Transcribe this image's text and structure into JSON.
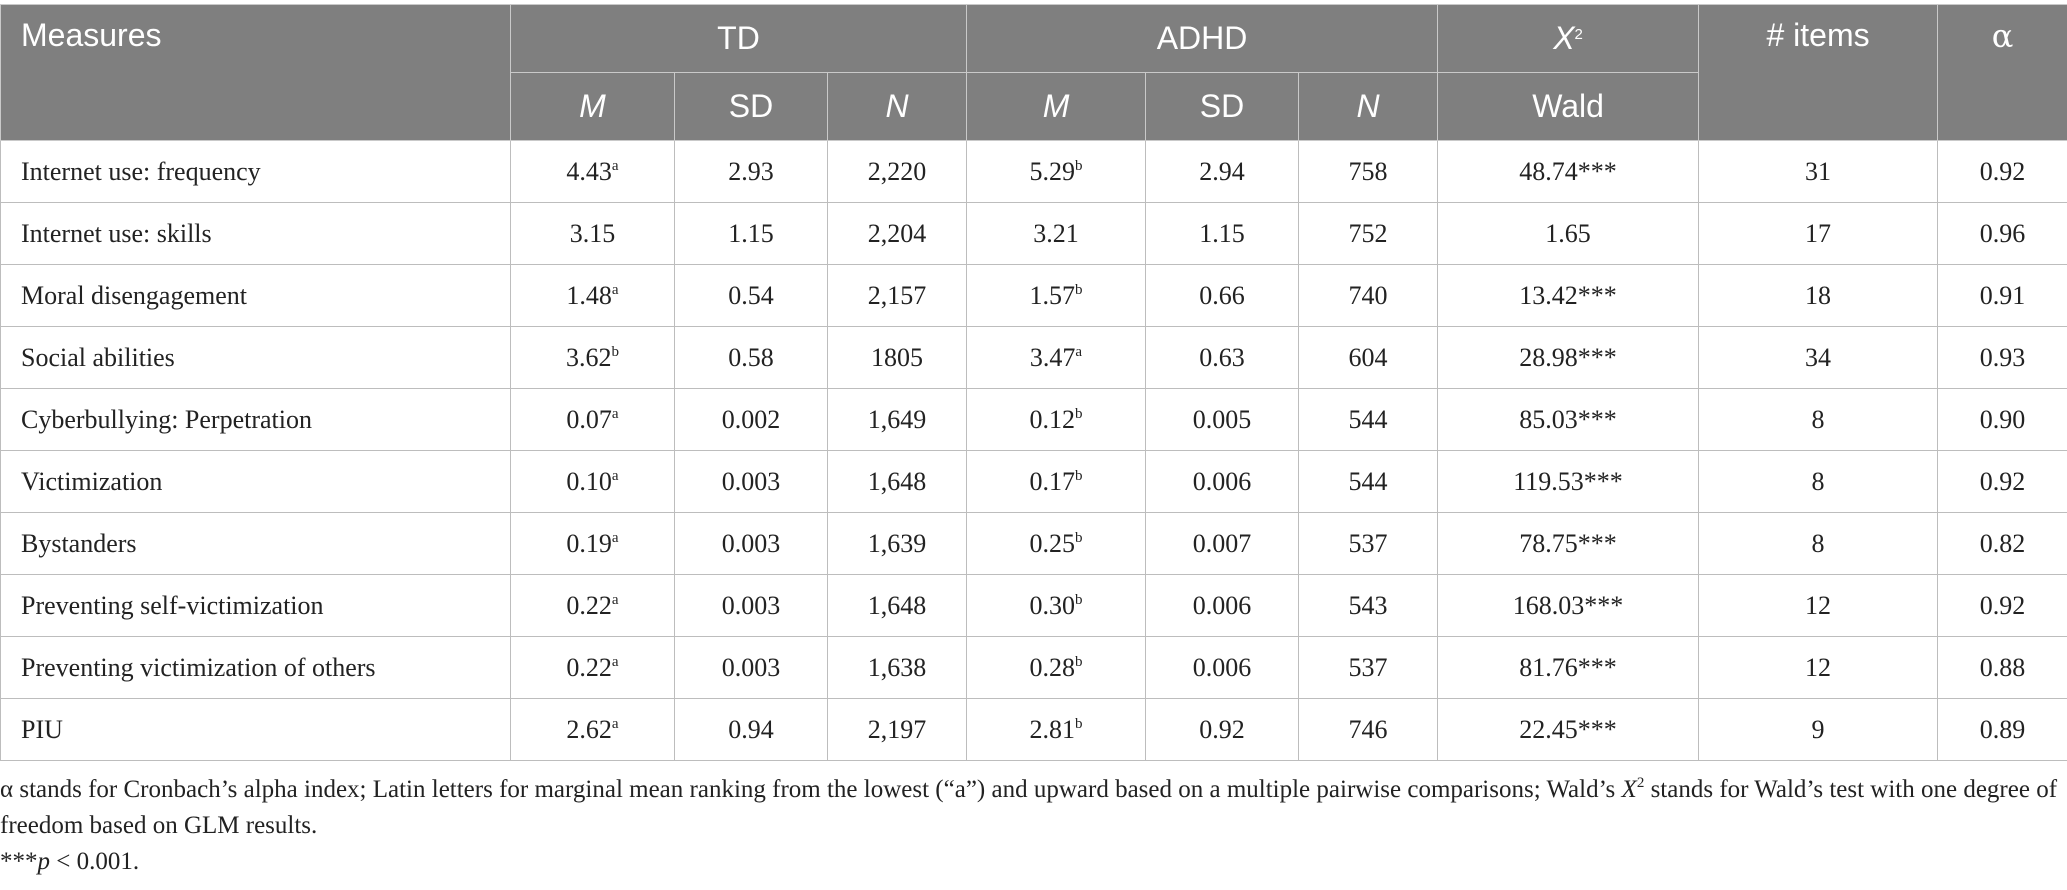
{
  "table": {
    "header": {
      "measures": "Measures",
      "td": "TD",
      "adhd": "ADHD",
      "chi_base": "X",
      "chi_exp": "2",
      "wald": "Wald",
      "items": "# items",
      "alpha": "α",
      "m": "M",
      "sd": "SD",
      "n": "N"
    },
    "rows": [
      {
        "measure": "Internet use: frequency",
        "td_m": "4.43",
        "td_m_sup": "a",
        "td_sd": "2.93",
        "td_n": "2,220",
        "adhd_m": "5.29",
        "adhd_m_sup": "b",
        "adhd_sd": "2.94",
        "adhd_n": "758",
        "wald": "48.74***",
        "items": "31",
        "alpha": "0.92"
      },
      {
        "measure": "Internet use: skills",
        "td_m": "3.15",
        "td_m_sup": "",
        "td_sd": "1.15",
        "td_n": "2,204",
        "adhd_m": "3.21",
        "adhd_m_sup": "",
        "adhd_sd": "1.15",
        "adhd_n": "752",
        "wald": "1.65",
        "items": "17",
        "alpha": "0.96"
      },
      {
        "measure": "Moral disengagement",
        "td_m": "1.48",
        "td_m_sup": "a",
        "td_sd": "0.54",
        "td_n": "2,157",
        "adhd_m": "1.57",
        "adhd_m_sup": "b",
        "adhd_sd": "0.66",
        "adhd_n": "740",
        "wald": "13.42***",
        "items": "18",
        "alpha": "0.91"
      },
      {
        "measure": "Social abilities",
        "td_m": "3.62",
        "td_m_sup": "b",
        "td_sd": "0.58",
        "td_n": "1805",
        "adhd_m": "3.47",
        "adhd_m_sup": "a",
        "adhd_sd": "0.63",
        "adhd_n": "604",
        "wald": "28.98***",
        "items": "34",
        "alpha": "0.93"
      },
      {
        "measure": "Cyberbullying: Perpetration",
        "td_m": "0.07",
        "td_m_sup": "a",
        "td_sd": "0.002",
        "td_n": "1,649",
        "adhd_m": "0.12",
        "adhd_m_sup": "b",
        "adhd_sd": "0.005",
        "adhd_n": "544",
        "wald": "85.03***",
        "items": "8",
        "alpha": "0.90"
      },
      {
        "measure": "Victimization",
        "td_m": "0.10",
        "td_m_sup": "a",
        "td_sd": "0.003",
        "td_n": "1,648",
        "adhd_m": "0.17",
        "adhd_m_sup": "b",
        "adhd_sd": "0.006",
        "adhd_n": "544",
        "wald": "119.53***",
        "items": "8",
        "alpha": "0.92"
      },
      {
        "measure": "Bystanders",
        "td_m": "0.19",
        "td_m_sup": "a",
        "td_sd": "0.003",
        "td_n": "1,639",
        "adhd_m": "0.25",
        "adhd_m_sup": "b",
        "adhd_sd": "0.007",
        "adhd_n": "537",
        "wald": "78.75***",
        "items": "8",
        "alpha": "0.82"
      },
      {
        "measure": "Preventing self-victimization",
        "td_m": "0.22",
        "td_m_sup": "a",
        "td_sd": "0.003",
        "td_n": "1,648",
        "adhd_m": "0.30",
        "adhd_m_sup": "b",
        "adhd_sd": "0.006",
        "adhd_n": "543",
        "wald": "168.03***",
        "items": "12",
        "alpha": "0.92"
      },
      {
        "measure": "Preventing victimization of others",
        "td_m": "0.22",
        "td_m_sup": "a",
        "td_sd": "0.003",
        "td_n": "1,638",
        "adhd_m": "0.28",
        "adhd_m_sup": "b",
        "adhd_sd": "0.006",
        "adhd_n": "537",
        "wald": "81.76***",
        "items": "12",
        "alpha": "0.88"
      },
      {
        "measure": "PIU",
        "td_m": "2.62",
        "td_m_sup": "a",
        "td_sd": "0.94",
        "td_n": "2,197",
        "adhd_m": "2.81",
        "adhd_m_sup": "b",
        "adhd_sd": "0.92",
        "adhd_n": "746",
        "wald": "22.45***",
        "items": "9",
        "alpha": "0.89"
      }
    ]
  },
  "notes": {
    "line1_pre": "α stands for Cronbach’s alpha index; Latin letters for marginal mean ranking from the lowest (“a”) and upward based on a multiple pairwise comparisons; Wald’s ",
    "line1_chi": "X",
    "line1_chi_exp": "2",
    "line1_post": " stands for Wald’s test with one degree of freedom based on GLM results.",
    "line2_stars": "***",
    "line2_p": "p",
    "line2_post": " < 0.001."
  }
}
